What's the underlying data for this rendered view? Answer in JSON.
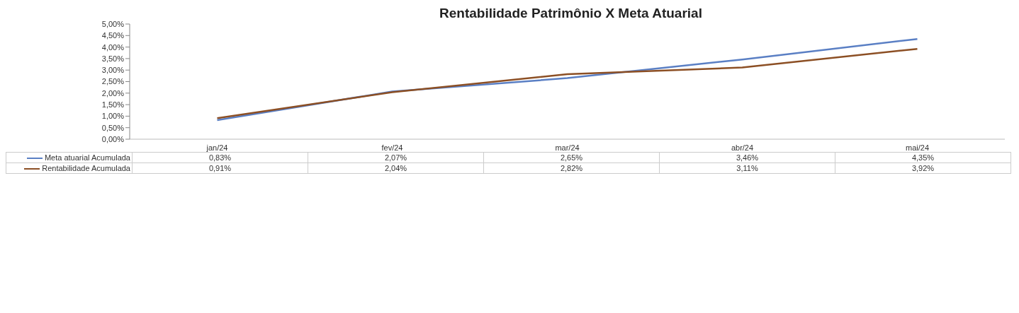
{
  "chart_data": {
    "type": "line",
    "title": "Rentabilidade Patrimônio X Meta Atuarial",
    "categories": [
      "jan/24",
      "fev/24",
      "mar/24",
      "abr/24",
      "mai/24"
    ],
    "series": [
      {
        "name": "Meta atuarial Acumulada",
        "color": "#5a7fc4",
        "values": [
          0.83,
          2.07,
          2.65,
          3.46,
          4.35
        ],
        "value_labels": [
          "0,83%",
          "2,07%",
          "2,65%",
          "3,46%",
          "4,35%"
        ]
      },
      {
        "name": "Rentabilidade Acumulada",
        "color": "#8c4f24",
        "values": [
          0.91,
          2.04,
          2.82,
          3.11,
          3.92
        ],
        "value_labels": [
          "0,91%",
          "2,04%",
          "2,82%",
          "3,11%",
          "3,92%"
        ]
      }
    ],
    "ylim": [
      0,
      5
    ],
    "yticks": [
      {
        "value": 0,
        "label": "0,00%"
      },
      {
        "value": 0.5,
        "label": "0,50%"
      },
      {
        "value": 1,
        "label": "1,00%"
      },
      {
        "value": 1.5,
        "label": "1,50%"
      },
      {
        "value": 2,
        "label": "2,00%"
      },
      {
        "value": 2.5,
        "label": "2,50%"
      },
      {
        "value": 3,
        "label": "3,00%"
      },
      {
        "value": 3.5,
        "label": "3,50%"
      },
      {
        "value": 4,
        "label": "4,00%"
      },
      {
        "value": 4.5,
        "label": "4,50%"
      },
      {
        "value": 5,
        "label": "5,00%"
      }
    ],
    "legend": "bottom",
    "marker": "none",
    "line_style": "solid"
  }
}
